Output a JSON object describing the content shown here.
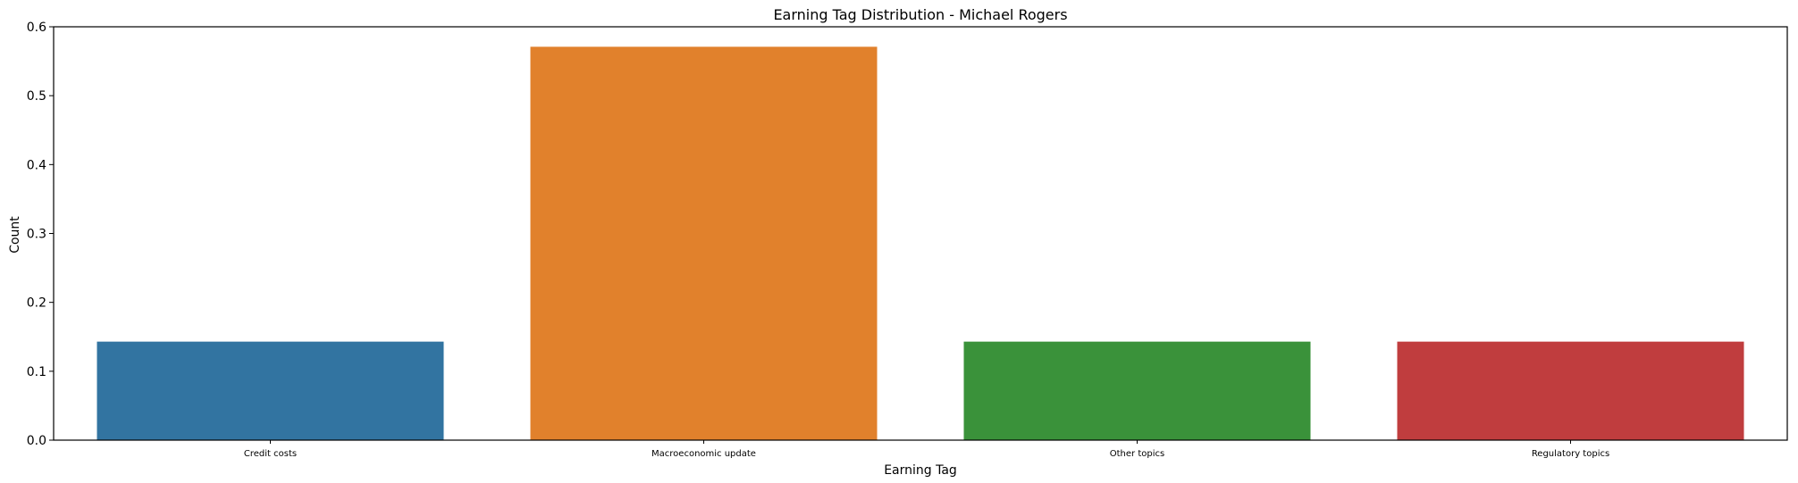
{
  "chart_data": {
    "type": "bar",
    "title": "Earning Tag Distribution - Michael Rogers",
    "xlabel": "Earning Tag",
    "ylabel": "Count",
    "ylim": [
      0,
      0.6
    ],
    "yticks": [
      0.0,
      0.1,
      0.2,
      0.3,
      0.4,
      0.5,
      0.6
    ],
    "ytick_labels": [
      "0.0",
      "0.1",
      "0.2",
      "0.3",
      "0.4",
      "0.5",
      "0.6"
    ],
    "categories": [
      "Credit costs",
      "Macroeconomic update",
      "Other topics",
      "Regulatory topics"
    ],
    "values": [
      0.143,
      0.571,
      0.143,
      0.143
    ],
    "colors": [
      "#3274a1",
      "#e1812c",
      "#3a923a",
      "#c03d3e"
    ],
    "grid": false,
    "legend": "none"
  }
}
